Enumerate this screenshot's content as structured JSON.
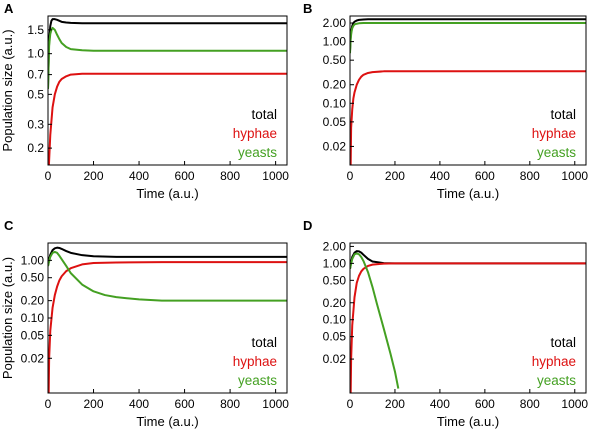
{
  "chart_data": [
    {
      "panel": "A",
      "type": "line",
      "xlabel": "Time (a.u.)",
      "ylabel": "Population size (a.u.)",
      "xlim": [
        0,
        1050
      ],
      "ylim": [
        0.15,
        1.9
      ],
      "yscale": "log",
      "xticks": [
        0,
        200,
        400,
        600,
        800,
        1000
      ],
      "yticks": [
        0.2,
        0.3,
        0.5,
        0.7,
        1.0,
        1.5
      ],
      "ytick_labels": [
        "0.2",
        "0.3",
        "0.5",
        "0.7",
        "1.0",
        "1.5"
      ],
      "legend": [
        "total",
        "hyphae",
        "yeasts"
      ],
      "legend_position": "bottom-right",
      "series": [
        {
          "name": "total",
          "color": "#000000",
          "x": [
            0,
            5,
            10,
            15,
            20,
            30,
            40,
            50,
            60,
            80,
            100,
            150,
            200,
            300,
            500,
            1050
          ],
          "y": [
            0.55,
            1.25,
            1.6,
            1.75,
            1.8,
            1.8,
            1.78,
            1.75,
            1.72,
            1.7,
            1.69,
            1.68,
            1.68,
            1.68,
            1.68,
            1.68
          ]
        },
        {
          "name": "hyphae",
          "color": "#dd1111",
          "x": [
            4,
            10,
            20,
            30,
            40,
            50,
            60,
            80,
            100,
            150,
            200,
            300,
            500,
            1050
          ],
          "y": [
            0.15,
            0.25,
            0.4,
            0.5,
            0.57,
            0.62,
            0.65,
            0.68,
            0.7,
            0.71,
            0.71,
            0.71,
            0.71,
            0.71
          ]
        },
        {
          "name": "yeasts",
          "color": "#44a022",
          "x": [
            0,
            5,
            10,
            15,
            20,
            30,
            40,
            50,
            60,
            80,
            100,
            150,
            200,
            300,
            500,
            1050
          ],
          "y": [
            0.55,
            1.15,
            1.4,
            1.5,
            1.55,
            1.5,
            1.38,
            1.28,
            1.2,
            1.12,
            1.08,
            1.06,
            1.05,
            1.05,
            1.05,
            1.05
          ]
        }
      ]
    },
    {
      "panel": "B",
      "type": "line",
      "xlabel": "Time (a.u.)",
      "ylabel": "",
      "xlim": [
        0,
        1050
      ],
      "ylim": [
        0.01,
        2.6
      ],
      "yscale": "log",
      "xticks": [
        0,
        200,
        400,
        600,
        800,
        1000
      ],
      "yticks": [
        0.02,
        0.05,
        0.1,
        0.2,
        0.5,
        1.0,
        2.0
      ],
      "ytick_labels": [
        "0.02",
        "0.05",
        "0.10",
        "0.20",
        "0.50",
        "1.00",
        "2.00"
      ],
      "legend": [
        "total",
        "hyphae",
        "yeasts"
      ],
      "legend_position": "bottom-right",
      "series": [
        {
          "name": "total",
          "color": "#000000",
          "x": [
            0,
            3,
            6,
            10,
            15,
            20,
            30,
            40,
            60,
            80,
            100,
            150,
            1050
          ],
          "y": [
            0.7,
            1.2,
            1.5,
            1.8,
            2.0,
            2.1,
            2.2,
            2.25,
            2.28,
            2.3,
            2.3,
            2.3,
            2.3
          ]
        },
        {
          "name": "hyphae",
          "color": "#dd1111",
          "x": [
            3,
            5,
            10,
            15,
            20,
            30,
            40,
            50,
            60,
            80,
            100,
            150,
            200,
            300,
            1050
          ],
          "y": [
            0.01,
            0.04,
            0.08,
            0.12,
            0.15,
            0.2,
            0.24,
            0.27,
            0.29,
            0.31,
            0.32,
            0.33,
            0.33,
            0.33,
            0.33
          ]
        },
        {
          "name": "yeasts",
          "color": "#44a022",
          "x": [
            0,
            3,
            6,
            10,
            15,
            20,
            30,
            40,
            60,
            80,
            100,
            150,
            1050
          ],
          "y": [
            0.65,
            1.1,
            1.4,
            1.65,
            1.8,
            1.9,
            1.95,
            1.98,
            2.0,
            2.0,
            2.0,
            2.0,
            2.0
          ]
        }
      ]
    },
    {
      "panel": "C",
      "type": "line",
      "xlabel": "Time (a.u.)",
      "ylabel": "Population size (a.u.)",
      "xlim": [
        0,
        1050
      ],
      "ylim": [
        0.005,
        2.0
      ],
      "yscale": "log",
      "xticks": [
        0,
        200,
        400,
        600,
        800,
        1000
      ],
      "yticks": [
        0.02,
        0.05,
        0.1,
        0.2,
        0.5,
        1.0
      ],
      "ytick_labels": [
        "0.02",
        "0.05",
        "0.10",
        "0.20",
        "0.50",
        "1.00"
      ],
      "legend": [
        "total",
        "hyphae",
        "yeasts"
      ],
      "legend_position": "bottom-right",
      "series": [
        {
          "name": "total",
          "color": "#000000",
          "x": [
            0,
            5,
            10,
            20,
            30,
            40,
            50,
            60,
            80,
            100,
            150,
            200,
            300,
            500,
            1050
          ],
          "y": [
            0.8,
            1.05,
            1.25,
            1.5,
            1.62,
            1.66,
            1.64,
            1.58,
            1.45,
            1.35,
            1.23,
            1.18,
            1.15,
            1.15,
            1.15
          ]
        },
        {
          "name": "hyphae",
          "color": "#dd1111",
          "x": [
            3,
            5,
            10,
            20,
            30,
            40,
            50,
            60,
            80,
            100,
            150,
            200,
            300,
            500,
            1050
          ],
          "y": [
            0.005,
            0.02,
            0.06,
            0.15,
            0.25,
            0.35,
            0.45,
            0.53,
            0.65,
            0.73,
            0.85,
            0.9,
            0.92,
            0.93,
            0.93
          ]
        },
        {
          "name": "yeasts",
          "color": "#44a022",
          "x": [
            0,
            10,
            20,
            30,
            40,
            50,
            60,
            80,
            100,
            150,
            200,
            250,
            300,
            400,
            500,
            600,
            1050
          ],
          "y": [
            0.8,
            1.15,
            1.35,
            1.4,
            1.35,
            1.2,
            1.05,
            0.8,
            0.6,
            0.38,
            0.29,
            0.25,
            0.23,
            0.21,
            0.2,
            0.2,
            0.2
          ]
        }
      ]
    },
    {
      "panel": "D",
      "type": "line",
      "xlabel": "Time (a.u.)",
      "ylabel": "",
      "xlim": [
        0,
        1050
      ],
      "ylim": [
        0.005,
        2.3
      ],
      "yscale": "log",
      "xticks": [
        0,
        200,
        400,
        600,
        800,
        1000
      ],
      "yticks": [
        0.02,
        0.05,
        0.1,
        0.2,
        0.5,
        1.0,
        2.0
      ],
      "ytick_labels": [
        "0.02",
        "0.05",
        "0.10",
        "0.20",
        "0.50",
        "1.00",
        "2.00"
      ],
      "legend": [
        "total",
        "hyphae",
        "yeasts"
      ],
      "legend_position": "bottom-right",
      "series": [
        {
          "name": "total",
          "color": "#000000",
          "x": [
            0,
            5,
            10,
            20,
            30,
            40,
            50,
            60,
            80,
            100,
            150,
            200,
            300,
            1050
          ],
          "y": [
            0.8,
            1.05,
            1.3,
            1.55,
            1.65,
            1.63,
            1.55,
            1.42,
            1.2,
            1.08,
            1.01,
            1.0,
            1.0,
            1.0
          ]
        },
        {
          "name": "hyphae",
          "color": "#dd1111",
          "x": [
            3,
            5,
            10,
            20,
            30,
            40,
            50,
            60,
            80,
            100,
            150,
            200,
            300,
            1050
          ],
          "y": [
            0.005,
            0.02,
            0.08,
            0.25,
            0.45,
            0.6,
            0.72,
            0.8,
            0.9,
            0.95,
            0.99,
            1.0,
            1.0,
            1.0
          ]
        },
        {
          "name": "yeasts",
          "color": "#44a022",
          "x": [
            0,
            10,
            20,
            30,
            40,
            50,
            60,
            80,
            100,
            120,
            150,
            180,
            200,
            215
          ],
          "y": [
            0.8,
            1.2,
            1.45,
            1.5,
            1.45,
            1.3,
            1.1,
            0.7,
            0.38,
            0.19,
            0.07,
            0.025,
            0.012,
            0.006
          ]
        }
      ]
    }
  ]
}
